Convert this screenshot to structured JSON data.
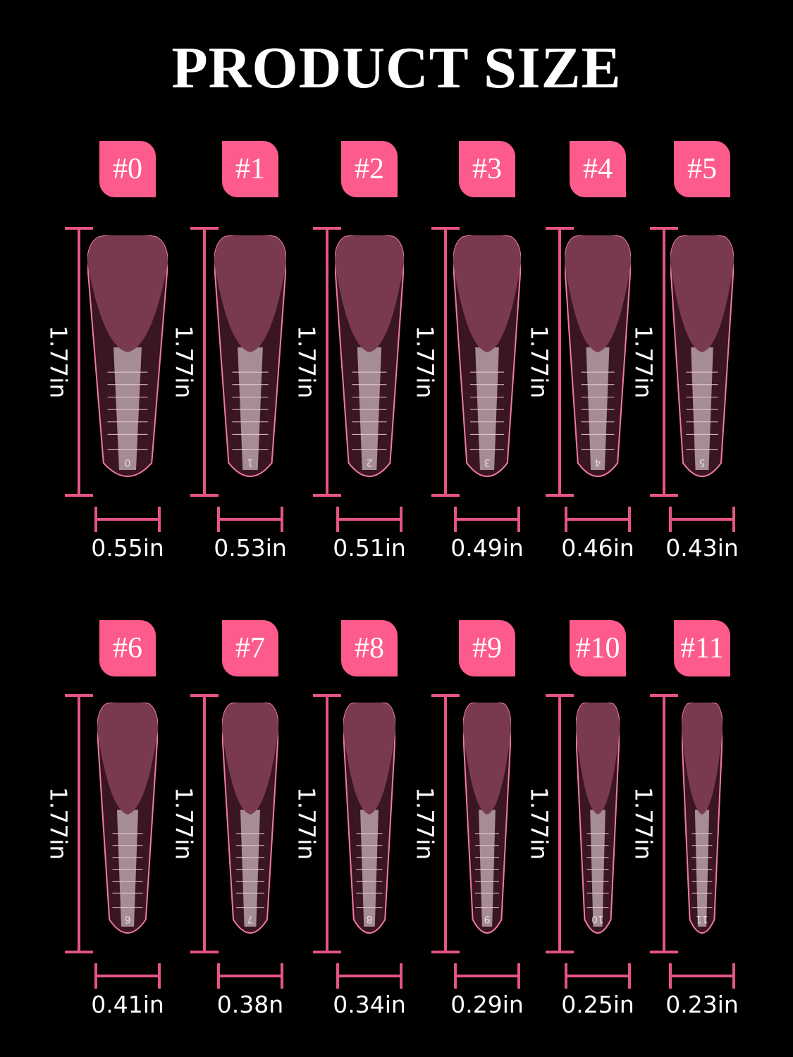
{
  "title": "PRODUCT SIZE",
  "colors": {
    "badge": "#fc5b8c",
    "ruler": "#e65580",
    "nail": "#7a3a4e"
  },
  "rows": [
    {
      "sizes": [
        {
          "label": "#0",
          "length": "1.77in",
          "width": "0.55in",
          "tip": "0"
        },
        {
          "label": "#1",
          "length": "1.77in",
          "width": "0.53in",
          "tip": "1"
        },
        {
          "label": "#2",
          "length": "1.77in",
          "width": "0.51in",
          "tip": "2"
        },
        {
          "label": "#3",
          "length": "1.77in",
          "width": "0.49in",
          "tip": "3"
        },
        {
          "label": "#4",
          "length": "1.77in",
          "width": "0.46in",
          "tip": "4"
        },
        {
          "label": "#5",
          "length": "1.77in",
          "width": "0.43in",
          "tip": "5"
        }
      ]
    },
    {
      "sizes": [
        {
          "label": "#6",
          "length": "1.77in",
          "width": "0.41in",
          "tip": "6"
        },
        {
          "label": "#7",
          "length": "1.77in",
          "width": "0.38n",
          "tip": "7"
        },
        {
          "label": "#8",
          "length": "1.77in",
          "width": "0.34in",
          "tip": "8"
        },
        {
          "label": "#9",
          "length": "1.77in",
          "width": "0.29in",
          "tip": "9"
        },
        {
          "label": "#10",
          "length": "1.77in",
          "width": "0.25in",
          "tip": "10"
        },
        {
          "label": "#11",
          "length": "1.77in",
          "width": "0.23in",
          "tip": "11"
        }
      ]
    }
  ]
}
